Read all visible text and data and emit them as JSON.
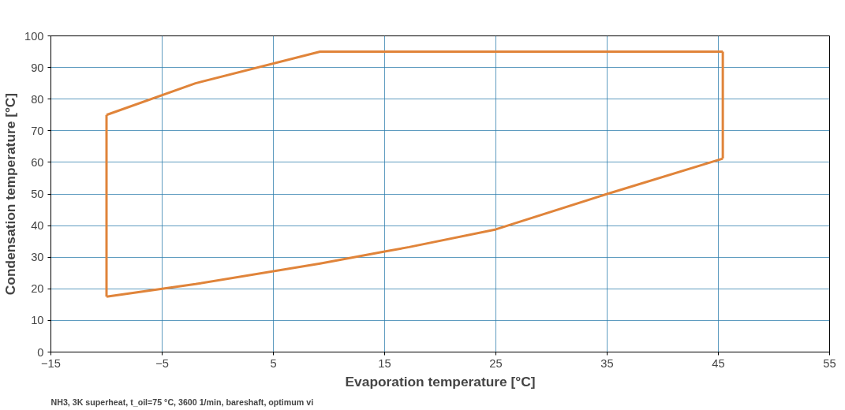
{
  "chart_data": {
    "type": "line",
    "xlabel": "Evaporation temperature [°C]",
    "ylabel": "Condensation temperature [°C]",
    "annotations": [
      "NH3, 3K superheat, t_oil=75 °C, 3600 1/min, bareshaft, optimum vi"
    ],
    "series": [
      {
        "color": "#e0843a",
        "x": [
          -10,
          -5,
          -2,
          9.2,
          15,
          17.2,
          25,
          35,
          45.4
        ],
        "values": [
          17.5,
          20,
          21.5,
          28,
          31.8,
          33.2,
          38.8,
          50,
          61.2
        ]
      },
      {
        "color": "#e0843a",
        "x": [
          -10,
          -2,
          9.2,
          45.4
        ],
        "values": [
          75,
          85,
          95,
          95
        ]
      },
      {
        "color": "#e0843a",
        "x": [
          -10,
          -10
        ],
        "values": [
          17.5,
          75
        ]
      },
      {
        "color": "#e0843a",
        "x": [
          45.4,
          45.4
        ],
        "values": [
          61.2,
          95
        ]
      }
    ],
    "xlim": [
      -15,
      55
    ],
    "xticks": [
      -15,
      -5,
      5,
      15,
      25,
      35,
      45,
      55
    ],
    "ylim": [
      0,
      100
    ],
    "yticks": [
      0,
      10,
      20,
      30,
      40,
      50,
      60,
      70,
      80,
      90,
      100
    ],
    "grid": true,
    "marker": "none",
    "line_style": "solid"
  }
}
